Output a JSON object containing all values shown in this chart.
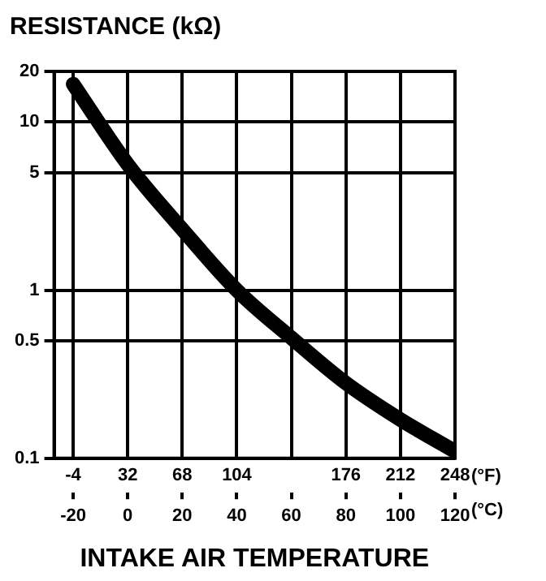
{
  "chart_data": {
    "type": "line",
    "title": "RESISTANCE (kΩ)",
    "xlabel": "INTAKE AIR TEMPERATURE",
    "x": [
      -20,
      0,
      20,
      40,
      60,
      80,
      100,
      120
    ],
    "series": [
      {
        "color": "#000000",
        "values": [
          16.8,
          5.6,
          2.3,
          1.0,
          0.52,
          0.28,
          0.17,
          0.11
        ]
      }
    ],
    "log": "y",
    "ylim": [
      0.1,
      20
    ],
    "yticks": [
      0.1,
      0.5,
      1,
      5,
      10,
      20
    ],
    "xlim": [
      -27,
      120
    ],
    "xticks": [
      -20,
      0,
      20,
      40,
      60,
      80,
      100,
      120
    ],
    "x2lim": [
      -16.6,
      248
    ],
    "x2ticks": [
      -4,
      32,
      68,
      104,
      176,
      212,
      248
    ],
    "annotations": [
      "(°F)",
      "(°C)"
    ],
    "grid": true,
    "legend": false,
    "marker": "none",
    "line_style": "solid"
  }
}
